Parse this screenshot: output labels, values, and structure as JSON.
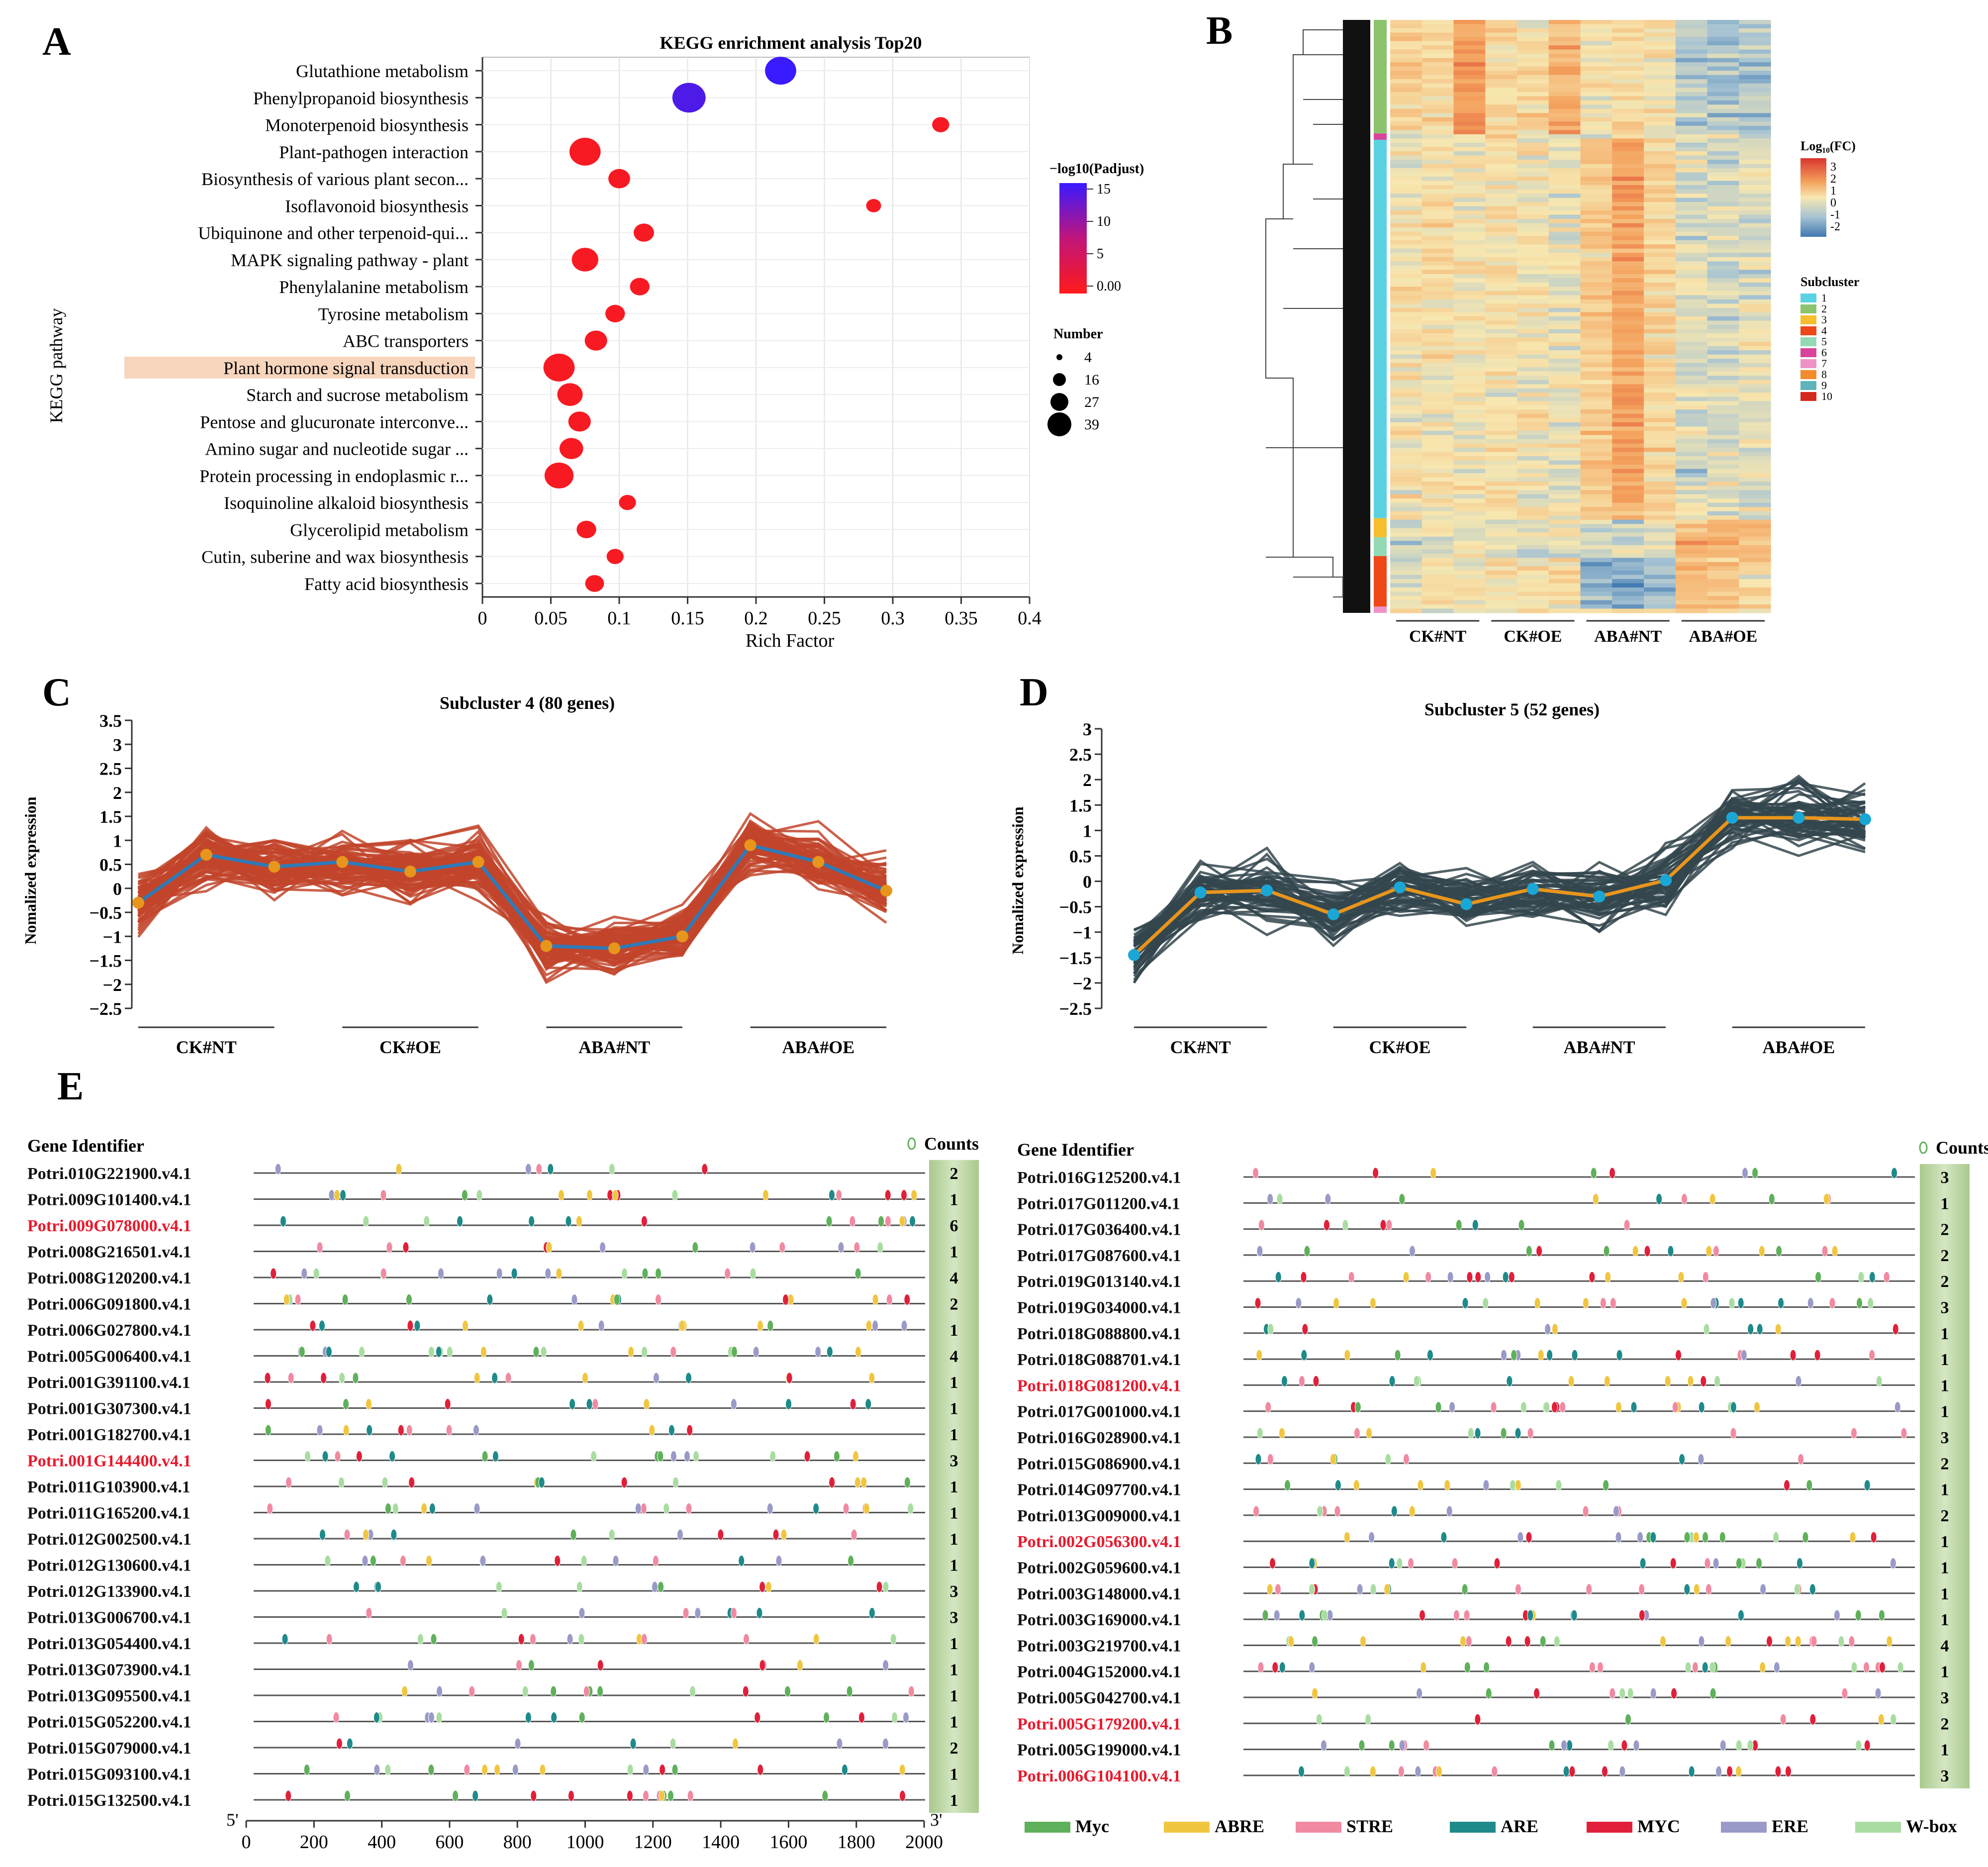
{
  "panel_labels": {
    "A": "A",
    "B": "B",
    "C": "C",
    "D": "D",
    "E": "E"
  },
  "colors": {
    "accent_red": "#e8192c",
    "accent_blue": "#2f7ab8",
    "gray_line": "#2c3e44",
    "green_bar": "#c8dcb4",
    "highlight": "#f7d5bd",
    "orange": "#e8951c",
    "cyan": "#1aa7d6",
    "brown_line": "#c2452b"
  },
  "chart_data": [
    {
      "id": "A",
      "type": "scatter",
      "title": "KEGG enrichment analysis Top20",
      "xlabel": "Rich Factor",
      "ylabel": "KEGG pathway",
      "xlim": [
        0,
        0.4
      ],
      "xticks": [
        "0",
        "0.05",
        "0.1",
        "0.15",
        "0.2",
        "0.25",
        "0.3",
        "0.35",
        "0.4"
      ],
      "highlighted": "Plant hormone signal transduction",
      "points": [
        {
          "pathway": "Glutathione metabolism",
          "rich_factor": 0.218,
          "padjust_log": 15,
          "number": 30
        },
        {
          "pathway": "Phenylpropanoid biosynthesis",
          "rich_factor": 0.151,
          "padjust_log": 13.5,
          "number": 35
        },
        {
          "pathway": "Monoterpenoid biosynthesis",
          "rich_factor": 0.335,
          "padjust_log": 0.5,
          "number": 6
        },
        {
          "pathway": "Plant-pathogen interaction",
          "rich_factor": 0.075,
          "padjust_log": 0.5,
          "number": 30
        },
        {
          "pathway": "Biosynthesis of various plant secon...",
          "rich_factor": 0.1,
          "padjust_log": 0.5,
          "number": 12
        },
        {
          "pathway": "Isoflavonoid biosynthesis",
          "rich_factor": 0.286,
          "padjust_log": 0.5,
          "number": 4
        },
        {
          "pathway": "Ubiquinone and other terpenoid-qui...",
          "rich_factor": 0.118,
          "padjust_log": 0.5,
          "number": 10
        },
        {
          "pathway": "MAPK signaling pathway - plant",
          "rich_factor": 0.075,
          "padjust_log": 0.5,
          "number": 20
        },
        {
          "pathway": "Phenylalanine metabolism",
          "rich_factor": 0.115,
          "padjust_log": 0.5,
          "number": 9
        },
        {
          "pathway": "Tyrosine metabolism",
          "rich_factor": 0.097,
          "padjust_log": 0.5,
          "number": 9
        },
        {
          "pathway": "ABC transporters",
          "rich_factor": 0.083,
          "padjust_log": 0.5,
          "number": 13
        },
        {
          "pathway": "Plant hormone signal transduction",
          "rich_factor": 0.056,
          "padjust_log": 0.5,
          "number": 30
        },
        {
          "pathway": "Starch and sucrose metabolism",
          "rich_factor": 0.064,
          "padjust_log": 0.5,
          "number": 18
        },
        {
          "pathway": "Pentose and glucuronate interconve...",
          "rich_factor": 0.071,
          "padjust_log": 0.5,
          "number": 13
        },
        {
          "pathway": "Amino sugar and nucleotide sugar ...",
          "rich_factor": 0.065,
          "padjust_log": 0.5,
          "number": 15
        },
        {
          "pathway": "Protein processing in endoplasmic r...",
          "rich_factor": 0.056,
          "padjust_log": 0.5,
          "number": 25
        },
        {
          "pathway": "Isoquinoline alkaloid biosynthesis",
          "rich_factor": 0.106,
          "padjust_log": 0.5,
          "number": 6
        },
        {
          "pathway": "Glycerolipid metabolism",
          "rich_factor": 0.076,
          "padjust_log": 0.5,
          "number": 9
        },
        {
          "pathway": "Cutin, suberine and wax biosynthesis",
          "rich_factor": 0.097,
          "padjust_log": 0.5,
          "number": 6
        },
        {
          "pathway": "Fatty acid biosynthesis",
          "rich_factor": 0.082,
          "padjust_log": 0.5,
          "number": 8
        }
      ],
      "color_legend": {
        "title": "−log10(Padjust)",
        "ticks": [
          "15",
          "10",
          "5",
          "0.00"
        ]
      },
      "size_legend": {
        "title": "Number",
        "values": [
          "4",
          "16",
          "27",
          "39"
        ]
      }
    },
    {
      "id": "B",
      "type": "heatmap",
      "groups": [
        "CK#NT",
        "CK#OE",
        "ABA#NT",
        "ABA#OE"
      ],
      "columns_per_group": 3,
      "color_legend": {
        "title": "Log₁₀(FC)",
        "ticks": [
          "3",
          "2",
          "1",
          "0",
          "-1",
          "-2"
        ]
      },
      "subcluster_legend": {
        "title": "Subcluster",
        "items": [
          "1",
          "2",
          "3",
          "4",
          "5",
          "6",
          "7",
          "8",
          "9",
          "10"
        ],
        "colors": [
          "#5ad2e2",
          "#8cc36c",
          "#f5be2c",
          "#ee4718",
          "#92d9b4",
          "#d9439a",
          "#ee92c6",
          "#f28b2c",
          "#5eb4b8",
          "#d42a1c"
        ]
      },
      "side_bar": [
        {
          "cluster": "2",
          "weight": 18
        },
        {
          "cluster": "6",
          "weight": 1
        },
        {
          "cluster": "1",
          "weight": 60
        },
        {
          "cluster": "3",
          "weight": 3
        },
        {
          "cluster": "5",
          "weight": 3
        },
        {
          "cluster": "4",
          "weight": 8
        },
        {
          "cluster": "7",
          "weight": 1
        }
      ]
    },
    {
      "id": "C",
      "type": "line",
      "title": "Subcluster 4 (80 genes)",
      "ylabel": "Nomalized expression",
      "ylim": [
        -2.5,
        3.5
      ],
      "yticks": [
        "3.5",
        "3",
        "2.5",
        "2",
        "1.5",
        "1",
        "0.5",
        "0",
        "−0.5",
        "−1",
        "−1.5",
        "−2",
        "−2.5"
      ],
      "groups": [
        "CK#NT",
        "CK#OE",
        "ABA#NT",
        "ABA#OE"
      ],
      "mean": [
        -0.3,
        0.7,
        0.45,
        0.55,
        0.35,
        0.55,
        -1.2,
        -1.25,
        -1.0,
        0.9,
        0.55,
        -0.05
      ],
      "gene_count": 80
    },
    {
      "id": "D",
      "type": "line",
      "title": "Subcluster 5 (52 genes)",
      "ylabel": "Nomalized expression",
      "ylim": [
        -2.5,
        3
      ],
      "yticks": [
        "3",
        "2.5",
        "2",
        "1.5",
        "1",
        "0.5",
        "0",
        "−0.5",
        "−1",
        "−1.5",
        "−2",
        "−2.5"
      ],
      "groups": [
        "CK#NT",
        "CK#OE",
        "ABA#NT",
        "ABA#OE"
      ],
      "mean": [
        -1.45,
        -0.22,
        -0.18,
        -0.65,
        -0.12,
        -0.45,
        -0.15,
        -0.3,
        0.02,
        1.25,
        1.25,
        1.22
      ],
      "gene_count": 52
    },
    {
      "id": "E",
      "type": "table",
      "header": "Gene Identifier",
      "counts_label": "Counts",
      "axis_ticks": [
        "0",
        "200",
        "400",
        "600",
        "800",
        "1000",
        "1200",
        "1400",
        "1600",
        "1800",
        "2000"
      ],
      "axis_start": "5'",
      "axis_end": "3'",
      "left_genes": [
        {
          "id": "Potri.010G221900.v4.1",
          "count": "2",
          "highlight": false
        },
        {
          "id": "Potri.009G101400.v4.1",
          "count": "1",
          "highlight": false
        },
        {
          "id": "Potri.009G078000.v4.1",
          "count": "6",
          "highlight": true
        },
        {
          "id": "Potri.008G216501.v4.1",
          "count": "1",
          "highlight": false
        },
        {
          "id": "Potri.008G120200.v4.1",
          "count": "4",
          "highlight": false
        },
        {
          "id": "Potri.006G091800.v4.1",
          "count": "2",
          "highlight": false
        },
        {
          "id": "Potri.006G027800.v4.1",
          "count": "1",
          "highlight": false
        },
        {
          "id": "Potri.005G006400.v4.1",
          "count": "4",
          "highlight": false
        },
        {
          "id": "Potri.001G391100.v4.1",
          "count": "1",
          "highlight": false
        },
        {
          "id": "Potri.001G307300.v4.1",
          "count": "1",
          "highlight": false
        },
        {
          "id": "Potri.001G182700.v4.1",
          "count": "1",
          "highlight": false
        },
        {
          "id": "Potri.001G144400.v4.1",
          "count": "3",
          "highlight": true
        },
        {
          "id": "Potri.011G103900.v4.1",
          "count": "1",
          "highlight": false
        },
        {
          "id": "Potri.011G165200.v4.1",
          "count": "1",
          "highlight": false
        },
        {
          "id": "Potri.012G002500.v4.1",
          "count": "1",
          "highlight": false
        },
        {
          "id": "Potri.012G130600.v4.1",
          "count": "1",
          "highlight": false
        },
        {
          "id": "Potri.012G133900.v4.1",
          "count": "3",
          "highlight": false
        },
        {
          "id": "Potri.013G006700.v4.1",
          "count": "3",
          "highlight": false
        },
        {
          "id": "Potri.013G054400.v4.1",
          "count": "1",
          "highlight": false
        },
        {
          "id": "Potri.013G073900.v4.1",
          "count": "1",
          "highlight": false
        },
        {
          "id": "Potri.013G095500.v4.1",
          "count": "1",
          "highlight": false
        },
        {
          "id": "Potri.015G052200.v4.1",
          "count": "1",
          "highlight": false
        },
        {
          "id": "Potri.015G079000.v4.1",
          "count": "2",
          "highlight": false
        },
        {
          "id": "Potri.015G093100.v4.1",
          "count": "1",
          "highlight": false
        },
        {
          "id": "Potri.015G132500.v4.1",
          "count": "1",
          "highlight": false
        }
      ],
      "right_genes": [
        {
          "id": "Potri.016G125200.v4.1",
          "count": "3",
          "highlight": false
        },
        {
          "id": "Potri.017G011200.v4.1",
          "count": "1",
          "highlight": false
        },
        {
          "id": "Potri.017G036400.v4.1",
          "count": "2",
          "highlight": false
        },
        {
          "id": "Potri.017G087600.v4.1",
          "count": "2",
          "highlight": false
        },
        {
          "id": "Potri.019G013140.v4.1",
          "count": "2",
          "highlight": false
        },
        {
          "id": "Potri.019G034000.v4.1",
          "count": "3",
          "highlight": false
        },
        {
          "id": "Potri.018G088800.v4.1",
          "count": "1",
          "highlight": false
        },
        {
          "id": "Potri.018G088701.v4.1",
          "count": "1",
          "highlight": false
        },
        {
          "id": "Potri.018G081200.v4.1",
          "count": "1",
          "highlight": true
        },
        {
          "id": "Potri.017G001000.v4.1",
          "count": "1",
          "highlight": false
        },
        {
          "id": "Potri.016G028900.v4.1",
          "count": "3",
          "highlight": false
        },
        {
          "id": "Potri.015G086900.v4.1",
          "count": "2",
          "highlight": false
        },
        {
          "id": "Potri.014G097700.v4.1",
          "count": "1",
          "highlight": false
        },
        {
          "id": "Potri.013G009000.v4.1",
          "count": "2",
          "highlight": false
        },
        {
          "id": "Potri.002G056300.v4.1",
          "count": "1",
          "highlight": true
        },
        {
          "id": "Potri.002G059600.v4.1",
          "count": "1",
          "highlight": false
        },
        {
          "id": "Potri.003G148000.v4.1",
          "count": "1",
          "highlight": false
        },
        {
          "id": "Potri.003G169000.v4.1",
          "count": "1",
          "highlight": false
        },
        {
          "id": "Potri.003G219700.v4.1",
          "count": "4",
          "highlight": false
        },
        {
          "id": "Potri.004G152000.v4.1",
          "count": "1",
          "highlight": false
        },
        {
          "id": "Potri.005G042700.v4.1",
          "count": "3",
          "highlight": false
        },
        {
          "id": "Potri.005G179200.v4.1",
          "count": "2",
          "highlight": true
        },
        {
          "id": "Potri.005G199000.v4.1",
          "count": "1",
          "highlight": false
        },
        {
          "id": "Potri.006G104100.v4.1",
          "count": "3",
          "highlight": true
        }
      ],
      "motif_legend": [
        {
          "name": "Myc",
          "color": "#5fb05a"
        },
        {
          "name": "ABRE",
          "color": "#f0c640"
        },
        {
          "name": "STRE",
          "color": "#f08aa0"
        },
        {
          "name": "ARE",
          "color": "#1f8a8a"
        },
        {
          "name": "MYC",
          "color": "#e0203a"
        },
        {
          "name": "ERE",
          "color": "#9a9ac8"
        },
        {
          "name": "W-box",
          "color": "#a8dca0"
        }
      ]
    }
  ]
}
